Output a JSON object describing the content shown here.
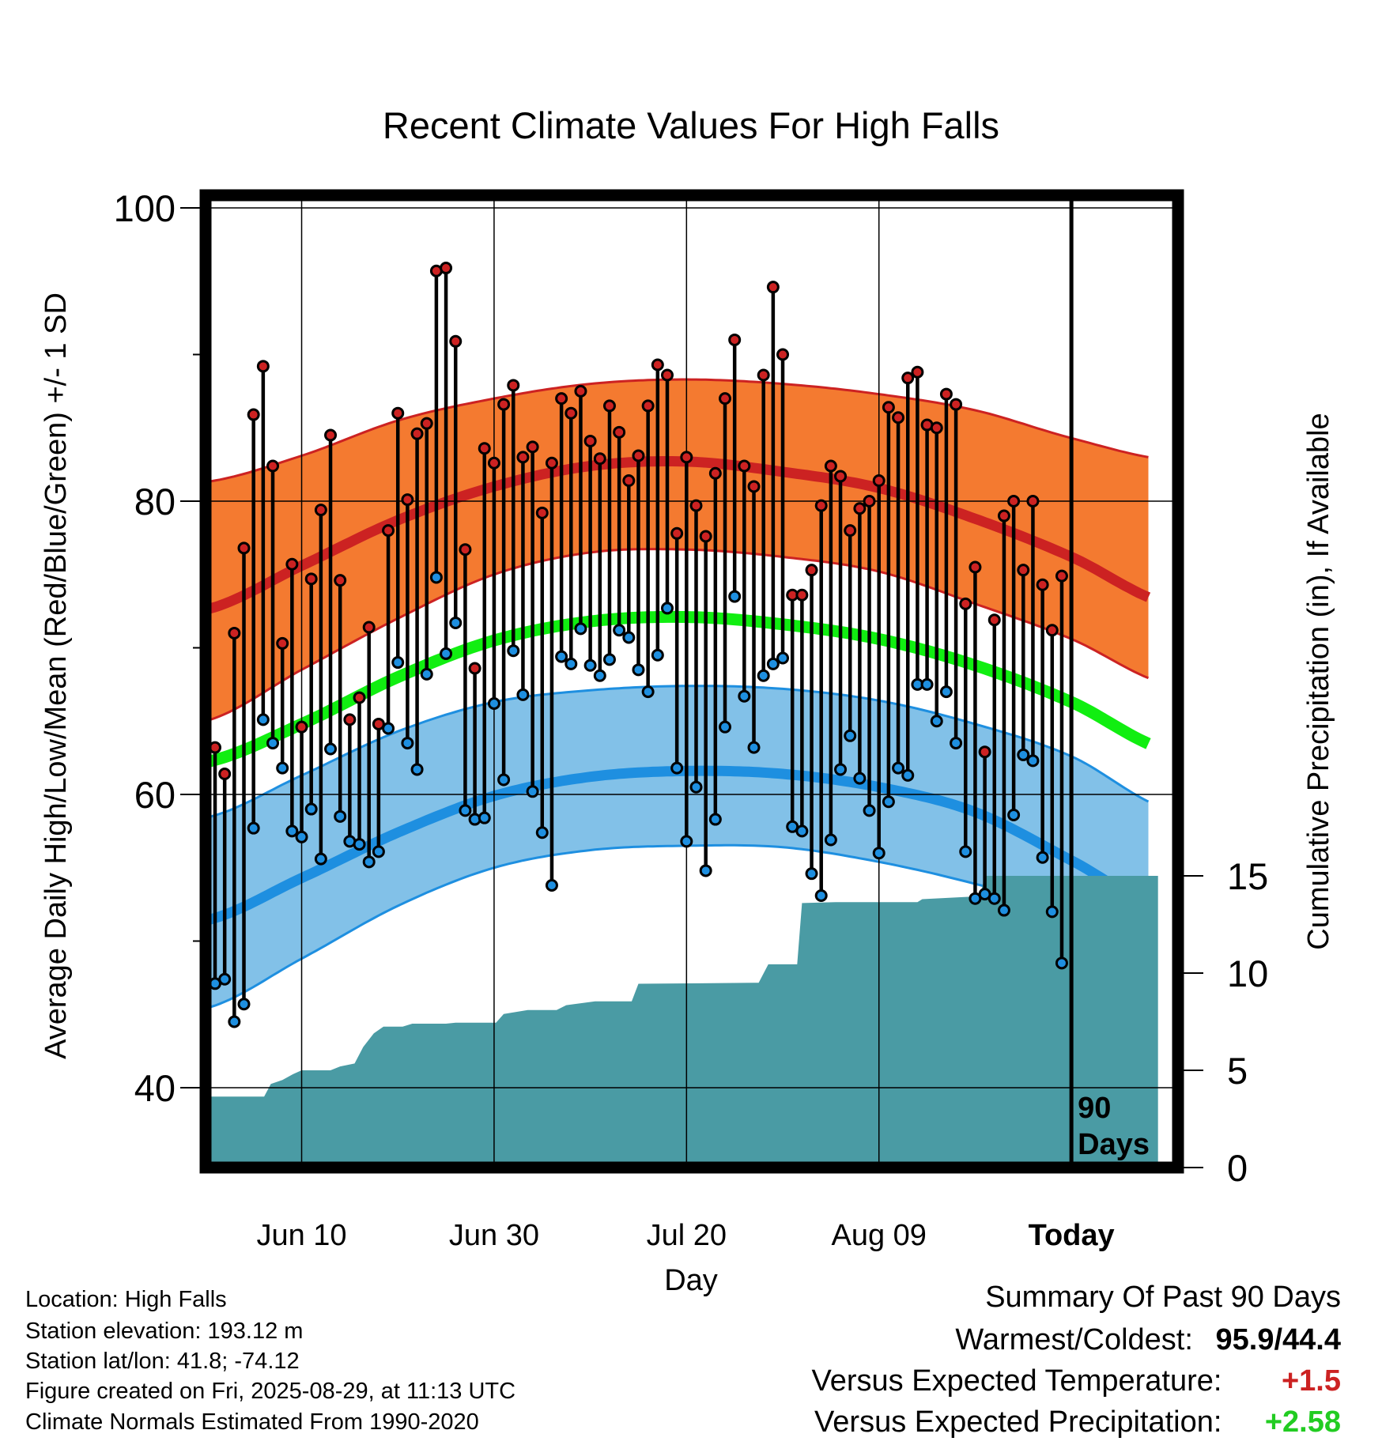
{
  "chart_data": {
    "type": "line",
    "title": "Recent Climate Values For High Falls",
    "xlabel": "Day",
    "ylabel": "Average Daily High/Low/Mean (Red/Blue/Green) +/- 1 SD",
    "y2label": "Cumulative Precipitation (in), If Available",
    "xlim": [
      -20,
      21
    ],
    "ylim": [
      34,
      101
    ],
    "y2lim": [
      0,
      15
    ],
    "yticks": [
      "40",
      "60",
      "80",
      "100"
    ],
    "y2ticks": [
      "0",
      "5",
      "10",
      "15"
    ],
    "xticks": [
      {
        "day": -80,
        "label": "Jun 10"
      },
      {
        "day": -60,
        "label": "Jun 30"
      },
      {
        "day": -40,
        "label": "Jul 20"
      },
      {
        "day": -20,
        "label": "Aug 09"
      },
      {
        "day": 0,
        "label": "Today"
      }
    ],
    "today_marker": {
      "day": 0,
      "label_line1": "90",
      "label_line2": "Days"
    },
    "grid": true,
    "normals": {
      "days": [
        -90,
        -80,
        -70,
        -60,
        -50,
        -40,
        -30,
        -20,
        -10,
        0,
        10
      ],
      "high_mean": [
        72.6,
        75.6,
        78.7,
        81.0,
        82.4,
        82.7,
        82.0,
        80.9,
        78.8,
        76.2,
        73.0
      ],
      "high_upper": [
        81.3,
        83.1,
        85.5,
        87.0,
        88.0,
        88.3,
        88.0,
        87.3,
        86.2,
        84.3,
        82.8
      ],
      "high_lower": [
        65.0,
        68.5,
        72.0,
        75.0,
        76.5,
        76.7,
        76.2,
        75.2,
        73.0,
        70.6,
        67.5
      ],
      "mean_mean": [
        62.2,
        64.8,
        68.0,
        70.5,
        71.8,
        72.1,
        71.6,
        70.6,
        68.8,
        66.3,
        63.0
      ],
      "low_mean": [
        51.4,
        54.3,
        57.4,
        59.9,
        61.2,
        61.6,
        61.4,
        60.5,
        58.8,
        55.5,
        52.0
      ],
      "low_upper": [
        58.4,
        61.3,
        64.3,
        66.3,
        67.1,
        67.4,
        67.2,
        66.4,
        64.8,
        62.6,
        59.0
      ],
      "low_lower": [
        45.4,
        48.8,
        52.4,
        55.0,
        56.2,
        56.5,
        56.4,
        55.4,
        53.9,
        52.0,
        49.0
      ]
    },
    "series": [
      {
        "name": "High",
        "color": "#cc2222",
        "values": [
          63.2,
          61.4,
          71.0,
          76.8,
          85.9,
          89.2,
          82.4,
          70.3,
          75.7,
          64.6,
          74.7,
          79.4,
          84.5,
          74.6,
          65.1,
          66.6,
          71.4,
          64.8,
          78.0,
          86.0,
          80.1,
          84.6,
          85.3,
          95.7,
          95.9,
          90.9,
          76.7,
          68.6,
          83.6,
          82.6,
          86.6,
          87.9,
          83.0,
          83.7,
          79.2,
          82.6,
          87.0,
          86.0,
          87.5,
          84.1,
          82.9,
          86.5,
          84.7,
          81.4,
          83.1,
          86.5,
          89.3,
          88.6,
          77.8,
          83.0,
          79.7,
          77.6,
          81.9,
          87.0,
          91.0,
          82.4,
          81.0,
          88.6,
          94.6,
          90.0,
          73.6,
          73.6,
          75.3,
          79.7,
          82.4,
          81.7,
          78.0,
          79.5,
          80.0,
          81.4,
          86.4,
          85.7,
          88.4,
          88.8,
          85.2,
          85.0,
          87.3,
          86.6,
          73.0,
          75.5,
          62.9,
          71.9,
          79.0,
          80.0,
          75.3,
          80.0,
          74.3,
          71.2,
          74.9
        ]
      },
      {
        "name": "Low",
        "color": "#1e8fe0",
        "values": [
          47.1,
          47.4,
          44.5,
          45.7,
          57.7,
          65.1,
          63.5,
          61.8,
          57.5,
          57.1,
          59.0,
          55.6,
          63.1,
          58.5,
          56.8,
          56.6,
          55.4,
          56.1,
          64.5,
          69.0,
          63.5,
          61.7,
          68.2,
          74.8,
          69.6,
          71.7,
          58.9,
          58.3,
          58.4,
          66.2,
          61.0,
          69.8,
          66.8,
          60.2,
          57.4,
          53.8,
          69.4,
          68.9,
          71.3,
          68.8,
          68.1,
          69.2,
          71.2,
          70.7,
          68.5,
          67.0,
          69.5,
          72.7,
          61.8,
          56.8,
          60.5,
          54.8,
          58.3,
          64.6,
          73.5,
          66.7,
          63.2,
          68.1,
          68.9,
          69.3,
          57.8,
          57.5,
          54.6,
          53.1,
          56.9,
          61.7,
          64.0,
          61.1,
          58.9,
          56.0,
          59.5,
          61.8,
          61.3,
          67.5,
          67.5,
          65.0,
          67.0,
          63.5,
          56.1,
          52.9,
          53.2,
          52.9,
          52.1,
          58.6,
          62.7,
          62.3,
          55.7,
          52.0,
          48.5
        ]
      }
    ],
    "precip_cumulative": [
      {
        "day": -90,
        "value": 3.65
      },
      {
        "day": -83.9,
        "value": 3.65
      },
      {
        "day": -83.2,
        "value": 4.3
      },
      {
        "day": -82.0,
        "value": 4.5
      },
      {
        "day": -80.9,
        "value": 4.8
      },
      {
        "day": -80.0,
        "value": 5.0
      },
      {
        "day": -77.0,
        "value": 5.0
      },
      {
        "day": -76.0,
        "value": 5.2
      },
      {
        "day": -74.5,
        "value": 5.35
      },
      {
        "day": -73.6,
        "value": 6.2
      },
      {
        "day": -72.5,
        "value": 6.9
      },
      {
        "day": -71.5,
        "value": 7.25
      },
      {
        "day": -69.5,
        "value": 7.25
      },
      {
        "day": -68.5,
        "value": 7.4
      },
      {
        "day": -65.0,
        "value": 7.4
      },
      {
        "day": -64.0,
        "value": 7.45
      },
      {
        "day": -59.8,
        "value": 7.45
      },
      {
        "day": -59.0,
        "value": 7.9
      },
      {
        "day": -56.5,
        "value": 8.1
      },
      {
        "day": -53.5,
        "value": 8.1
      },
      {
        "day": -52.5,
        "value": 8.35
      },
      {
        "day": -49.5,
        "value": 8.55
      },
      {
        "day": -45.7,
        "value": 8.55
      },
      {
        "day": -45.0,
        "value": 9.45
      },
      {
        "day": -33.0,
        "value": 9.5
      },
      {
        "day": -32.5,
        "value": 9.5
      },
      {
        "day": -31.5,
        "value": 10.45
      },
      {
        "day": -28.5,
        "value": 10.45
      },
      {
        "day": -28.0,
        "value": 13.6
      },
      {
        "day": -24.5,
        "value": 13.65
      },
      {
        "day": -16.0,
        "value": 13.65
      },
      {
        "day": -15.5,
        "value": 13.8
      },
      {
        "day": -9.5,
        "value": 13.95
      },
      {
        "day": -9.0,
        "value": 15.0
      },
      {
        "day": 9.0,
        "value": 15.0
      }
    ]
  },
  "info": {
    "location": "Location: High Falls",
    "elevation": "Station elevation: 193.12 m",
    "latlon": "Station lat/lon: 41.8; -74.12",
    "created": "Figure created on Fri, 2025-08-29, at 11:13 UTC",
    "normals_period": "Climate Normals Estimated From 1990-2020"
  },
  "summary": {
    "title": "Summary Of Past 90 Days",
    "warm_cold_label": "Warmest/Coldest:",
    "warmest": "95.9",
    "separator": "/",
    "coldest": "44.4",
    "temp_label": "Versus Expected Temperature:",
    "temp_value": "+1.5",
    "precip_label": "Versus Expected Precipitation:",
    "precip_value": "+2.58"
  },
  "colors": {
    "high": "#cc2222",
    "high_band": "#f47a30",
    "mean": "#11ee11",
    "low": "#1e8fe0",
    "low_band": "#82c1e8",
    "precip": "#4a9ba4",
    "temp_anomaly": "#cc2222",
    "precip_anomaly": "#22cc22"
  }
}
